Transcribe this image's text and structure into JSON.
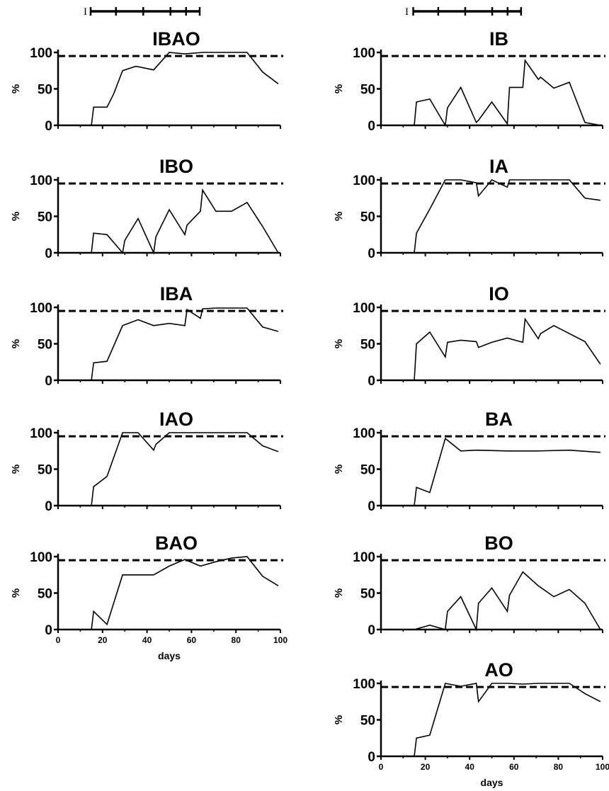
{
  "figure": {
    "x_axis_label": "days",
    "y_axis_label": "%",
    "y_ticks": [
      "0",
      "50",
      "100"
    ],
    "x_ticks": [
      "0",
      "20",
      "40",
      "60",
      "80",
      "100"
    ],
    "reference_line": 95,
    "timeline_marker": "I",
    "timeline_ticks": [
      16,
      29,
      43,
      57,
      65,
      72
    ],
    "line_color": "#000000"
  },
  "chart_data": [
    {
      "type": "line",
      "title": "IBAO",
      "xlim": [
        0,
        100
      ],
      "ylim": [
        0,
        100
      ],
      "xlabel": "",
      "ylabel": "%",
      "reference": 95,
      "x": [
        0,
        15,
        16,
        22,
        25,
        29,
        35,
        43,
        50,
        57,
        65,
        72,
        85,
        92,
        99
      ],
      "y": [
        0,
        0,
        25,
        25,
        43,
        75,
        81,
        76,
        100,
        98,
        100,
        100,
        100,
        73,
        57
      ]
    },
    {
      "type": "line",
      "title": "IBO",
      "xlim": [
        0,
        100
      ],
      "ylim": [
        0,
        100
      ],
      "xlabel": "",
      "ylabel": "%",
      "reference": 95,
      "x": [
        0,
        15,
        16,
        22,
        29,
        30,
        36,
        43,
        44,
        50,
        57,
        58,
        64,
        65,
        71,
        78,
        85,
        92,
        99
      ],
      "y": [
        0,
        0,
        27,
        25,
        0,
        17,
        47,
        0,
        22,
        59,
        25,
        38,
        57,
        86,
        57,
        57,
        69,
        36,
        0
      ]
    },
    {
      "type": "line",
      "title": "IBA",
      "xlim": [
        0,
        100
      ],
      "ylim": [
        0,
        100
      ],
      "xlabel": "",
      "ylabel": "%",
      "reference": 95,
      "x": [
        0,
        15,
        16,
        22,
        29,
        36,
        43,
        50,
        57,
        58,
        64,
        65,
        71,
        78,
        85,
        92,
        99
      ],
      "y": [
        0,
        0,
        24,
        26,
        75,
        83,
        75,
        78,
        75,
        97,
        85,
        98,
        99,
        99,
        99,
        73,
        67
      ]
    },
    {
      "type": "line",
      "title": "IAO",
      "xlim": [
        0,
        100
      ],
      "ylim": [
        0,
        100
      ],
      "xlabel": "",
      "ylabel": "%",
      "reference": 95,
      "x": [
        0,
        15,
        16,
        22,
        29,
        36,
        43,
        44,
        50,
        57,
        64,
        71,
        78,
        85,
        92,
        99
      ],
      "y": [
        0,
        0,
        26,
        40,
        100,
        100,
        76,
        84,
        100,
        100,
        100,
        100,
        100,
        100,
        82,
        74
      ]
    },
    {
      "type": "line",
      "title": "BAO",
      "xlim": [
        0,
        100
      ],
      "ylim": [
        0,
        100
      ],
      "xlabel": "days",
      "ylabel": "%",
      "reference": 95,
      "x": [
        0,
        15,
        16,
        22,
        29,
        36,
        43,
        50,
        57,
        64,
        71,
        78,
        85,
        92,
        99
      ],
      "y": [
        0,
        0,
        25,
        7,
        75,
        75,
        75,
        87,
        96,
        87,
        93,
        98,
        100,
        73,
        60
      ]
    },
    {
      "type": "line",
      "title": "IB",
      "xlim": [
        0,
        100
      ],
      "ylim": [
        0,
        100
      ],
      "xlabel": "",
      "ylabel": "%",
      "reference": 95,
      "x": [
        0,
        15,
        16,
        22,
        29,
        30,
        36,
        43,
        44,
        50,
        57,
        58,
        64,
        65,
        71,
        72,
        78,
        85,
        92,
        99
      ],
      "y": [
        0,
        0,
        32,
        36,
        0,
        24,
        52,
        4,
        7,
        32,
        2,
        52,
        52,
        89,
        63,
        66,
        51,
        59,
        4,
        0
      ]
    },
    {
      "type": "line",
      "title": "IA",
      "xlim": [
        0,
        100
      ],
      "ylim": [
        0,
        100
      ],
      "xlabel": "",
      "ylabel": "%",
      "reference": 95,
      "x": [
        0,
        15,
        16,
        22,
        29,
        36,
        43,
        44,
        50,
        57,
        58,
        64,
        71,
        78,
        85,
        92,
        99
      ],
      "y": [
        0,
        0,
        27,
        60,
        100,
        100,
        96,
        78,
        100,
        90,
        100,
        100,
        100,
        100,
        100,
        75,
        72
      ]
    },
    {
      "type": "line",
      "title": "IO",
      "xlim": [
        0,
        100
      ],
      "ylim": [
        0,
        100
      ],
      "xlabel": "",
      "ylabel": "%",
      "reference": 95,
      "x": [
        0,
        15,
        16,
        22,
        29,
        30,
        36,
        43,
        44,
        50,
        57,
        64,
        65,
        71,
        72,
        78,
        85,
        92,
        99
      ],
      "y": [
        0,
        0,
        50,
        66,
        32,
        52,
        55,
        53,
        45,
        52,
        58,
        52,
        84,
        57,
        64,
        75,
        64,
        53,
        22
      ]
    },
    {
      "type": "line",
      "title": "BA",
      "xlim": [
        0,
        100
      ],
      "ylim": [
        0,
        100
      ],
      "xlabel": "",
      "ylabel": "%",
      "reference": 95,
      "x": [
        0,
        15,
        16,
        22,
        29,
        36,
        43,
        57,
        71,
        85,
        99
      ],
      "y": [
        0,
        0,
        25,
        18,
        92,
        75,
        76,
        75,
        75,
        76,
        73
      ]
    },
    {
      "type": "line",
      "title": "BO",
      "xlim": [
        0,
        100
      ],
      "ylim": [
        0,
        100
      ],
      "xlabel": "",
      "ylabel": "%",
      "reference": 95,
      "x": [
        0,
        15,
        22,
        29,
        30,
        36,
        43,
        44,
        50,
        57,
        58,
        64,
        71,
        78,
        85,
        92,
        99
      ],
      "y": [
        0,
        0,
        6,
        0,
        25,
        45,
        0,
        36,
        57,
        25,
        47,
        79,
        60,
        45,
        55,
        36,
        0
      ]
    },
    {
      "type": "line",
      "title": "AO",
      "xlim": [
        0,
        100
      ],
      "ylim": [
        0,
        100
      ],
      "xlabel": "days",
      "ylabel": "%",
      "reference": 95,
      "x": [
        0,
        15,
        16,
        22,
        29,
        36,
        43,
        44,
        50,
        57,
        64,
        71,
        78,
        85,
        92,
        99
      ],
      "y": [
        0,
        0,
        25,
        29,
        100,
        96,
        100,
        75,
        100,
        100,
        99,
        100,
        100,
        100,
        86,
        75
      ]
    }
  ]
}
